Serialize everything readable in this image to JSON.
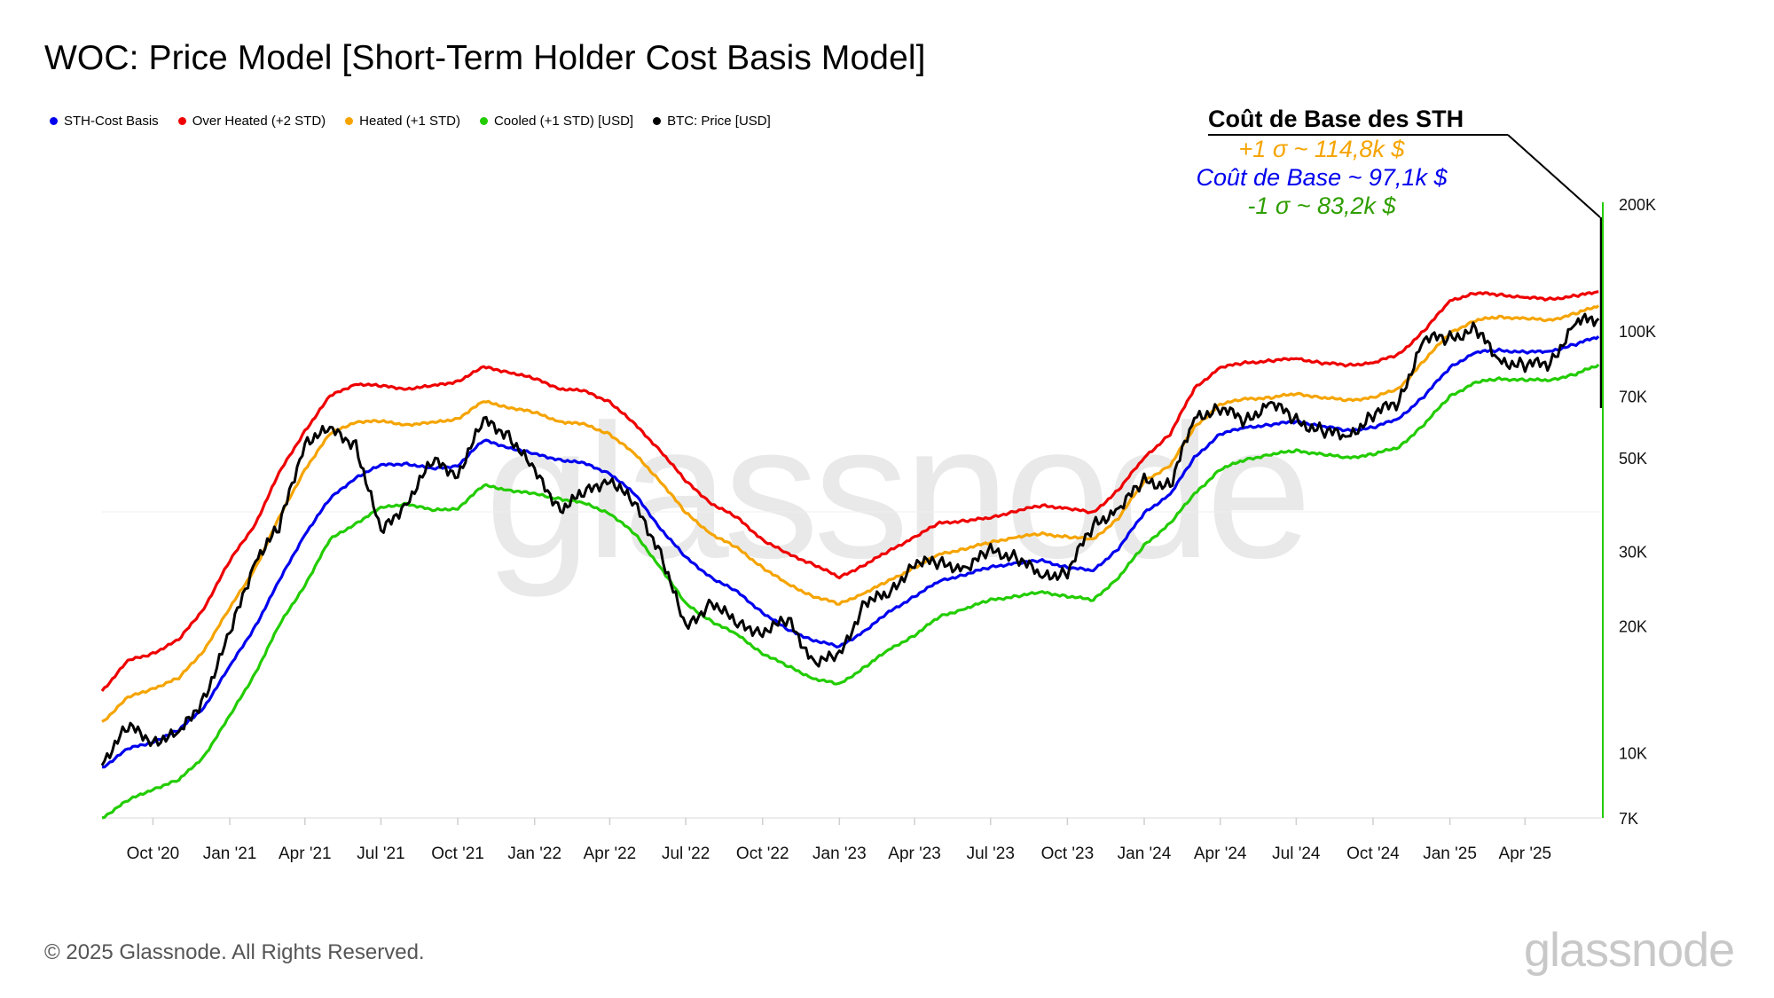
{
  "header": {
    "title": "WOC: Price Model [Short-Term Holder Cost Basis Model]"
  },
  "legend": [
    {
      "label": "STH-Cost Basis",
      "color": "#0000ee"
    },
    {
      "label": "Over Heated (+2 STD)",
      "color": "#ee0000"
    },
    {
      "label": "Heated (+1 STD)",
      "color": "#f5a400"
    },
    {
      "label": "Cooled (+1 STD) [USD]",
      "color": "#22cc00"
    },
    {
      "label": "BTC: Price [USD]",
      "color": "#000000"
    }
  ],
  "annotation": {
    "title": "Coût de Base des STH",
    "line1": "+1 σ ~ 114,8k $",
    "line1_color": "#f5a400",
    "line2": "Coût de Base ~ 97,1k $",
    "line2_color": "#0000ee",
    "line3": "-1 σ ~ 83,2k $",
    "line3_color": "#2e9e00"
  },
  "footer": {
    "copyright": "© 2025 Glassnode. All Rights Reserved.",
    "brand": "glassnode"
  },
  "watermark": "glassnode",
  "chart_data": {
    "type": "line",
    "title": "WOC: Price Model [Short-Term Holder Cost Basis Model]",
    "yscale": "log",
    "ylim": [
      7000,
      200000
    ],
    "y_ticks": [
      {
        "value": 200000,
        "label": "200K"
      },
      {
        "value": 100000,
        "label": "100K"
      },
      {
        "value": 70000,
        "label": "70K"
      },
      {
        "value": 50000,
        "label": "50K"
      },
      {
        "value": 30000,
        "label": "30K"
      },
      {
        "value": 20000,
        "label": "20K"
      },
      {
        "value": 10000,
        "label": "10K"
      },
      {
        "value": 7000,
        "label": "7K"
      }
    ],
    "xlim": [
      "2020-08-01",
      "2025-07-01"
    ],
    "x_ticks": [
      {
        "date": "2020-10-01",
        "label": "Oct '20"
      },
      {
        "date": "2021-01-01",
        "label": "Jan '21"
      },
      {
        "date": "2021-04-01",
        "label": "Apr '21"
      },
      {
        "date": "2021-07-01",
        "label": "Jul '21"
      },
      {
        "date": "2021-10-01",
        "label": "Oct '21"
      },
      {
        "date": "2022-01-01",
        "label": "Jan '22"
      },
      {
        "date": "2022-04-01",
        "label": "Apr '22"
      },
      {
        "date": "2022-07-01",
        "label": "Jul '22"
      },
      {
        "date": "2022-10-01",
        "label": "Oct '22"
      },
      {
        "date": "2023-01-01",
        "label": "Jan '23"
      },
      {
        "date": "2023-04-01",
        "label": "Apr '23"
      },
      {
        "date": "2023-07-01",
        "label": "Jul '23"
      },
      {
        "date": "2023-10-01",
        "label": "Oct '23"
      },
      {
        "date": "2024-01-01",
        "label": "Jan '24"
      },
      {
        "date": "2024-04-01",
        "label": "Apr '24"
      },
      {
        "date": "2024-07-01",
        "label": "Jul '24"
      },
      {
        "date": "2024-10-01",
        "label": "Oct '24"
      },
      {
        "date": "2025-01-01",
        "label": "Jan '25"
      },
      {
        "date": "2025-04-01",
        "label": "Apr '25"
      }
    ],
    "x": [
      "2020-08-01",
      "2020-09-01",
      "2020-10-01",
      "2020-11-01",
      "2020-12-01",
      "2021-01-01",
      "2021-02-01",
      "2021-03-01",
      "2021-04-01",
      "2021-05-01",
      "2021-06-01",
      "2021-07-01",
      "2021-08-01",
      "2021-09-01",
      "2021-10-01",
      "2021-11-01",
      "2021-12-01",
      "2022-01-01",
      "2022-02-01",
      "2022-03-01",
      "2022-04-01",
      "2022-05-01",
      "2022-06-01",
      "2022-07-01",
      "2022-08-01",
      "2022-09-01",
      "2022-10-01",
      "2022-11-01",
      "2022-12-01",
      "2023-01-01",
      "2023-02-01",
      "2023-03-01",
      "2023-04-01",
      "2023-05-01",
      "2023-06-01",
      "2023-07-01",
      "2023-08-01",
      "2023-09-01",
      "2023-10-01",
      "2023-11-01",
      "2023-12-01",
      "2024-01-01",
      "2024-02-01",
      "2024-03-01",
      "2024-04-01",
      "2024-05-01",
      "2024-06-01",
      "2024-07-01",
      "2024-08-01",
      "2024-09-01",
      "2024-10-01",
      "2024-11-01",
      "2024-12-01",
      "2025-01-01",
      "2025-02-01",
      "2025-03-01",
      "2025-04-01",
      "2025-05-01",
      "2025-06-01",
      "2025-06-28"
    ],
    "series": [
      {
        "name": "Over Heated (+2 STD)",
        "color": "#ee0000",
        "values": [
          14000,
          16500,
          17200,
          18500,
          22000,
          28500,
          35000,
          46000,
          58000,
          70000,
          75000,
          74000,
          73000,
          74000,
          76000,
          82000,
          80000,
          77000,
          73000,
          72000,
          68000,
          60000,
          52000,
          44000,
          39000,
          36000,
          32000,
          29500,
          28000,
          26000,
          28000,
          30000,
          32500,
          35000,
          35500,
          36000,
          37500,
          38500,
          38000,
          37000,
          42000,
          50000,
          57000,
          73000,
          82000,
          84000,
          85000,
          86000,
          84000,
          83000,
          84000,
          88000,
          100000,
          118000,
          123000,
          122000,
          120000,
          119000,
          121000,
          124000
        ]
      },
      {
        "name": "Heated (+1 STD)",
        "color": "#f5a400",
        "values": [
          11800,
          13500,
          14200,
          15000,
          17500,
          22000,
          27500,
          36000,
          47000,
          57000,
          61000,
          61000,
          60000,
          60500,
          62000,
          68000,
          66000,
          64000,
          61000,
          60000,
          57000,
          51000,
          44000,
          37000,
          33000,
          30500,
          27500,
          25000,
          23500,
          22500,
          24000,
          25500,
          27500,
          29500,
          30500,
          31500,
          32500,
          33000,
          32500,
          32000,
          36000,
          44000,
          48000,
          59000,
          67000,
          69000,
          69500,
          71000,
          69500,
          68500,
          69500,
          73000,
          85000,
          99000,
          106000,
          108000,
          107000,
          106000,
          110000,
          114800
        ]
      },
      {
        "name": "STH-Cost Basis",
        "color": "#0000ee",
        "values": [
          9200,
          10200,
          10600,
          11300,
          12800,
          16000,
          20000,
          25500,
          33000,
          40000,
          45000,
          48000,
          48500,
          47000,
          48000,
          55000,
          53000,
          51000,
          49500,
          48500,
          46000,
          41000,
          34000,
          29000,
          26000,
          24000,
          21500,
          19500,
          18500,
          17800,
          19500,
          21500,
          23500,
          25500,
          26500,
          27500,
          28200,
          28500,
          27500,
          27000,
          30500,
          37000,
          41000,
          50000,
          57000,
          59000,
          60000,
          61000,
          59500,
          58000,
          59000,
          62000,
          70000,
          82000,
          89000,
          90000,
          89000,
          89500,
          93000,
          97100
        ]
      },
      {
        "name": "Cooled (+1 STD) [USD]",
        "color": "#22cc00",
        "values": [
          7000,
          7700,
          8200,
          8600,
          9800,
          12200,
          15500,
          20000,
          25000,
          32000,
          35000,
          38000,
          39000,
          37500,
          38000,
          43000,
          42000,
          41000,
          40000,
          39000,
          37000,
          33000,
          27500,
          22500,
          20500,
          19000,
          17200,
          16000,
          15000,
          14500,
          16000,
          17500,
          19000,
          21000,
          22000,
          23000,
          23500,
          24000,
          23500,
          23000,
          26000,
          31000,
          35000,
          41000,
          47000,
          49500,
          51000,
          52000,
          51000,
          50000,
          51000,
          53000,
          60000,
          70000,
          75500,
          77000,
          76500,
          76500,
          79000,
          83200
        ]
      },
      {
        "name": "BTC: Price [USD]",
        "color": "#000000",
        "values": [
          9500,
          11500,
          10700,
          11000,
          13500,
          19000,
          29000,
          34000,
          55000,
          58000,
          54000,
          33000,
          39500,
          49000,
          46000,
          61000,
          57000,
          46000,
          38000,
          41000,
          45000,
          38500,
          30000,
          19500,
          23000,
          20000,
          19500,
          20500,
          16500,
          16800,
          23000,
          23500,
          28500,
          28000,
          27500,
          30000,
          29200,
          26000,
          27000,
          34500,
          38000,
          44000,
          43000,
          62000,
          66000,
          61000,
          68000,
          61000,
          58000,
          56000,
          63500,
          68000,
          96000,
          96000,
          101000,
          85000,
          83000,
          84000,
          105000,
          107000
        ]
      }
    ]
  }
}
